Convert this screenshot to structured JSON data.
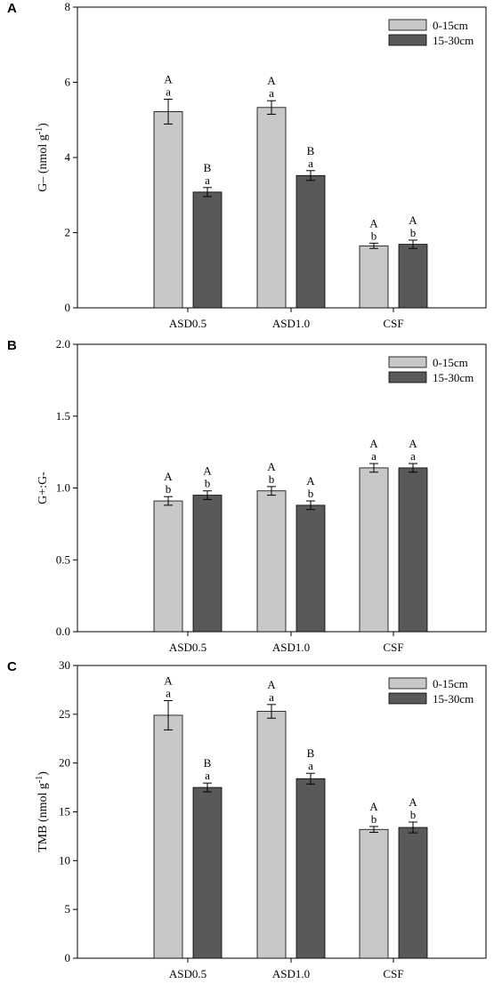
{
  "colors": {
    "shallow": "#c8c8c8",
    "deep": "#595959",
    "axis": "#000000"
  },
  "chart_data": [
    {
      "type": "bar",
      "panel_label": "A",
      "ylabel": "G– (nmol g",
      "ylabel_sup": "-1",
      "ylabel_end": ")",
      "categories": [
        "ASD0.5",
        "ASD1.0",
        "CSF"
      ],
      "ylim": [
        0,
        8
      ],
      "yticks": [
        0,
        2,
        4,
        6,
        8
      ],
      "ytick_labels": [
        "0",
        "2",
        "4",
        "6",
        "8"
      ],
      "legend": "top-right",
      "grid": false,
      "series": [
        {
          "name": "0-15cm",
          "values": [
            5.22,
            5.33,
            1.65
          ],
          "errors": [
            0.33,
            0.18,
            0.07
          ],
          "letters_upper": [
            "A",
            "A",
            "A"
          ],
          "letters_lower": [
            "a",
            "a",
            "b"
          ]
        },
        {
          "name": "15-30cm",
          "values": [
            3.08,
            3.52,
            1.69
          ],
          "errors": [
            0.12,
            0.13,
            0.11
          ],
          "letters_upper": [
            "B",
            "B",
            "A"
          ],
          "letters_lower": [
            "a",
            "a",
            "b"
          ]
        }
      ]
    },
    {
      "type": "bar",
      "panel_label": "B",
      "ylabel": "G+:G-",
      "ylabel_sup": "",
      "ylabel_end": "",
      "categories": [
        "ASD0.5",
        "ASD1.0",
        "CSF"
      ],
      "ylim": [
        0,
        2
      ],
      "yticks": [
        0,
        0.5,
        1,
        1.5,
        2
      ],
      "ytick_labels": [
        "0.0",
        "0.5",
        "1.0",
        "1.5",
        "2.0"
      ],
      "legend": "top-right",
      "grid": false,
      "series": [
        {
          "name": "0-15cm",
          "values": [
            0.91,
            0.98,
            1.14
          ],
          "errors": [
            0.03,
            0.03,
            0.03
          ],
          "letters_upper": [
            "A",
            "A",
            "A"
          ],
          "letters_lower": [
            "b",
            "b",
            "a"
          ]
        },
        {
          "name": "15-30cm",
          "values": [
            0.95,
            0.88,
            1.14
          ],
          "errors": [
            0.03,
            0.03,
            0.03
          ],
          "letters_upper": [
            "A",
            "A",
            "A"
          ],
          "letters_lower": [
            "b",
            "b",
            "a"
          ]
        }
      ]
    },
    {
      "type": "bar",
      "panel_label": "C",
      "ylabel": "TMB (nmol g",
      "ylabel_sup": "-1",
      "ylabel_end": ")",
      "categories": [
        "ASD0.5",
        "ASD1.0",
        "CSF"
      ],
      "ylim": [
        0,
        30
      ],
      "yticks": [
        0,
        5,
        10,
        15,
        20,
        25,
        30
      ],
      "ytick_labels": [
        "0",
        "5",
        "10",
        "15",
        "20",
        "25",
        "30"
      ],
      "legend": "top-right",
      "grid": false,
      "series": [
        {
          "name": "0-15cm",
          "values": [
            24.9,
            25.3,
            13.2
          ],
          "errors": [
            1.5,
            0.7,
            0.3
          ],
          "letters_upper": [
            "A",
            "A",
            "A"
          ],
          "letters_lower": [
            "a",
            "a",
            "b"
          ]
        },
        {
          "name": "15-30cm",
          "values": [
            17.5,
            18.4,
            13.4
          ],
          "errors": [
            0.45,
            0.55,
            0.55
          ],
          "letters_upper": [
            "B",
            "B",
            "A"
          ],
          "letters_lower": [
            "a",
            "a",
            "b"
          ]
        }
      ]
    }
  ]
}
